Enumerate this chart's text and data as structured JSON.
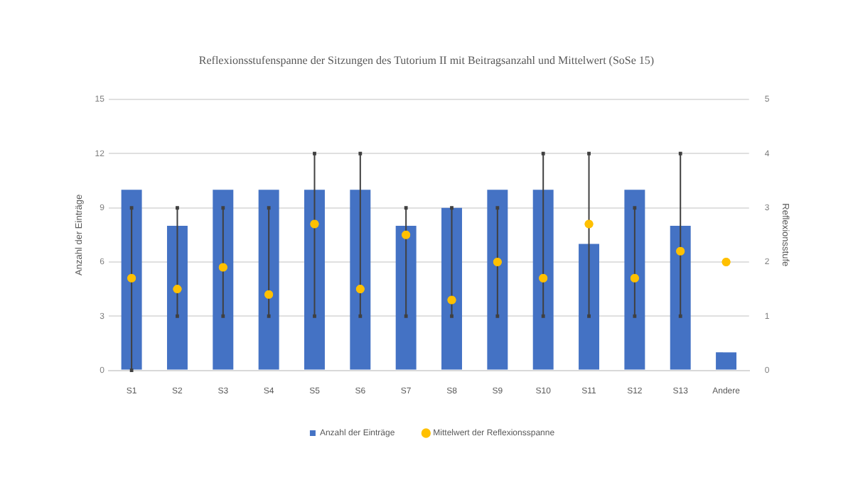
{
  "chart_data": {
    "type": "bar",
    "title": "Reflexionsstufenspanne der Sitzungen des Tutorium II mit Beitragsanzahl und Mittelwert (SoSe 15)",
    "ylabel": "Anzahl der Einträge",
    "y2label": "Reflexionsstufe",
    "categories": [
      "S1",
      "S2",
      "S3",
      "S4",
      "S5",
      "S6",
      "S7",
      "S8",
      "S9",
      "S10",
      "S11",
      "S12",
      "S13",
      "Andere"
    ],
    "series": [
      {
        "name": "Anzahl der Einträge",
        "color": "#4472c4",
        "values": [
          10,
          8,
          10,
          10,
          10,
          10,
          8,
          9,
          10,
          10,
          7,
          10,
          8,
          1
        ]
      },
      {
        "name": "Mittelwert der Reflexionsspanne",
        "type": "scatter",
        "axis": "y2",
        "color": "#ffc000",
        "values": [
          1.7,
          1.5,
          1.9,
          1.4,
          2.7,
          1.5,
          2.5,
          1.3,
          2.0,
          1.7,
          2.7,
          1.7,
          2.2,
          2.0
        ],
        "errors": [
          [
            0,
            3
          ],
          [
            1,
            3
          ],
          [
            1,
            3
          ],
          [
            1,
            3
          ],
          [
            1,
            4
          ],
          [
            1,
            4
          ],
          [
            1,
            3
          ],
          [
            1,
            3
          ],
          [
            1,
            3
          ],
          [
            1,
            4
          ],
          [
            1,
            4
          ],
          [
            1,
            3
          ],
          [
            1,
            4
          ],
          null
        ]
      }
    ],
    "ylim": [
      0,
      15
    ],
    "yticks": [
      0,
      3,
      6,
      9,
      12,
      15
    ],
    "y2lim": [
      0,
      5
    ],
    "y2ticks": [
      0,
      1,
      2,
      3,
      4,
      5
    ],
    "grid": "y",
    "legend": "bottom",
    "marker": "circle"
  }
}
